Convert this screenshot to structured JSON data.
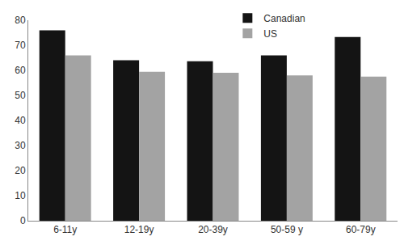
{
  "chart_data": {
    "type": "bar",
    "categories": [
      "6-11y",
      "12-19y",
      "20-39y",
      "50-59 y",
      "60-79y"
    ],
    "series": [
      {
        "name": "Canadian",
        "color": "#141414",
        "values": [
          76,
          64,
          63.6,
          66,
          73.3
        ]
      },
      {
        "name": "US",
        "color": "#a3a3a3",
        "values": [
          66,
          59.4,
          59,
          58,
          57.5
        ]
      }
    ],
    "ylim": [
      0,
      80
    ],
    "yticks": [
      0,
      10,
      20,
      30,
      40,
      50,
      60,
      70,
      80
    ],
    "grid": false,
    "legend": "top"
  }
}
